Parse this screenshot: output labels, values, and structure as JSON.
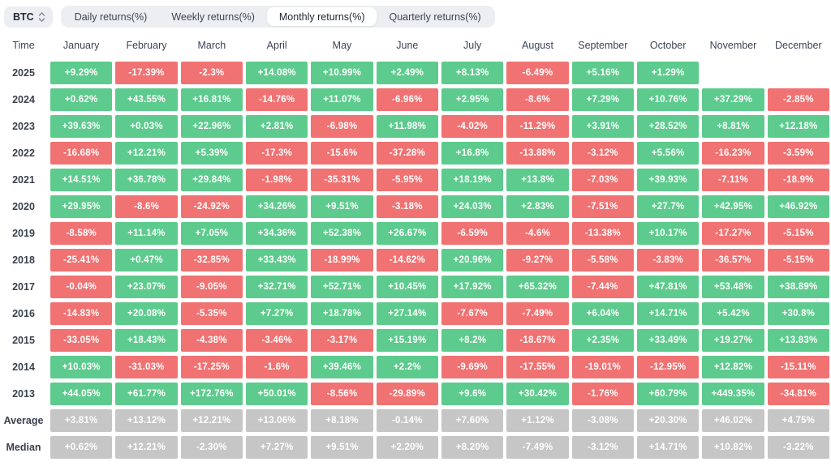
{
  "controls": {
    "asset": "BTC",
    "tabs": [
      {
        "label": "Daily returns(%)",
        "active": false
      },
      {
        "label": "Weekly returns(%)",
        "active": false
      },
      {
        "label": "Monthly returns(%)",
        "active": true
      },
      {
        "label": "Quarterly returns(%)",
        "active": false
      }
    ]
  },
  "colors": {
    "positive": "#5dcb8d",
    "negative": "#f07272",
    "summary": "#c6c6c6",
    "cell_text": "#ffffff"
  },
  "chart_data": {
    "type": "heatmap",
    "title": "BTC Monthly returns(%)",
    "legend_position": "none",
    "grid": false,
    "columns": [
      "Time",
      "January",
      "February",
      "March",
      "April",
      "May",
      "June",
      "July",
      "August",
      "September",
      "October",
      "November",
      "December"
    ],
    "rows": [
      {
        "label": "2025",
        "type": "year",
        "values": [
          "+9.29%",
          "-17.39%",
          "-2.3%",
          "+14.08%",
          "+10.99%",
          "+2.49%",
          "+8.13%",
          "-6.49%",
          "+5.16%",
          "+1.29%",
          "",
          ""
        ]
      },
      {
        "label": "2024",
        "type": "year",
        "values": [
          "+0.62%",
          "+43.55%",
          "+16.81%",
          "-14.76%",
          "+11.07%",
          "-6.96%",
          "+2.95%",
          "-8.6%",
          "+7.29%",
          "+10.76%",
          "+37.29%",
          "-2.85%"
        ]
      },
      {
        "label": "2023",
        "type": "year",
        "values": [
          "+39.63%",
          "+0.03%",
          "+22.96%",
          "+2.81%",
          "-6.98%",
          "+11.98%",
          "-4.02%",
          "-11.29%",
          "+3.91%",
          "+28.52%",
          "+8.81%",
          "+12.18%"
        ]
      },
      {
        "label": "2022",
        "type": "year",
        "values": [
          "-16.68%",
          "+12.21%",
          "+5.39%",
          "-17.3%",
          "-15.6%",
          "-37.28%",
          "+16.8%",
          "-13.88%",
          "-3.12%",
          "+5.56%",
          "-16.23%",
          "-3.59%"
        ]
      },
      {
        "label": "2021",
        "type": "year",
        "values": [
          "+14.51%",
          "+36.78%",
          "+29.84%",
          "-1.98%",
          "-35.31%",
          "-5.95%",
          "+18.19%",
          "+13.8%",
          "-7.03%",
          "+39.93%",
          "-7.11%",
          "-18.9%"
        ]
      },
      {
        "label": "2020",
        "type": "year",
        "values": [
          "+29.95%",
          "-8.6%",
          "-24.92%",
          "+34.26%",
          "+9.51%",
          "-3.18%",
          "+24.03%",
          "+2.83%",
          "-7.51%",
          "+27.7%",
          "+42.95%",
          "+46.92%"
        ]
      },
      {
        "label": "2019",
        "type": "year",
        "values": [
          "-8.58%",
          "+11.14%",
          "+7.05%",
          "+34.36%",
          "+52.38%",
          "+26.67%",
          "-6.59%",
          "-4.6%",
          "-13.38%",
          "+10.17%",
          "-17.27%",
          "-5.15%"
        ]
      },
      {
        "label": "2018",
        "type": "year",
        "values": [
          "-25.41%",
          "+0.47%",
          "-32.85%",
          "+33.43%",
          "-18.99%",
          "-14.62%",
          "+20.96%",
          "-9.27%",
          "-5.58%",
          "-3.83%",
          "-36.57%",
          "-5.15%"
        ]
      },
      {
        "label": "2017",
        "type": "year",
        "values": [
          "-0.04%",
          "+23.07%",
          "-9.05%",
          "+32.71%",
          "+52.71%",
          "+10.45%",
          "+17.92%",
          "+65.32%",
          "-7.44%",
          "+47.81%",
          "+53.48%",
          "+38.89%"
        ]
      },
      {
        "label": "2016",
        "type": "year",
        "values": [
          "-14.83%",
          "+20.08%",
          "-5.35%",
          "+7.27%",
          "+18.78%",
          "+27.14%",
          "-7.67%",
          "-7.49%",
          "+6.04%",
          "+14.71%",
          "+5.42%",
          "+30.8%"
        ]
      },
      {
        "label": "2015",
        "type": "year",
        "values": [
          "-33.05%",
          "+18.43%",
          "-4.38%",
          "-3.46%",
          "-3.17%",
          "+15.19%",
          "+8.2%",
          "-18.67%",
          "+2.35%",
          "+33.49%",
          "+19.27%",
          "+13.83%"
        ]
      },
      {
        "label": "2014",
        "type": "year",
        "values": [
          "+10.03%",
          "-31.03%",
          "-17.25%",
          "-1.6%",
          "+39.46%",
          "+2.2%",
          "-9.69%",
          "-17.55%",
          "-19.01%",
          "-12.95%",
          "+12.82%",
          "-15.11%"
        ]
      },
      {
        "label": "2013",
        "type": "year",
        "values": [
          "+44.05%",
          "+61.77%",
          "+172.76%",
          "+50.01%",
          "-8.56%",
          "-29.89%",
          "+9.6%",
          "+30.42%",
          "-1.76%",
          "+60.79%",
          "+449.35%",
          "-34.81%"
        ]
      },
      {
        "label": "Average",
        "type": "summary",
        "values": [
          "+3.81%",
          "+13.12%",
          "+12.21%",
          "+13.06%",
          "+8.18%",
          "-0.14%",
          "+7.60%",
          "+1.12%",
          "-3.08%",
          "+20.30%",
          "+46.02%",
          "+4.75%"
        ]
      },
      {
        "label": "Median",
        "type": "summary",
        "values": [
          "+0.62%",
          "+12.21%",
          "-2.30%",
          "+7.27%",
          "+9.51%",
          "+2.20%",
          "+8.20%",
          "-7.49%",
          "-3.12%",
          "+14.71%",
          "+10.82%",
          "-3.22%"
        ]
      }
    ]
  }
}
